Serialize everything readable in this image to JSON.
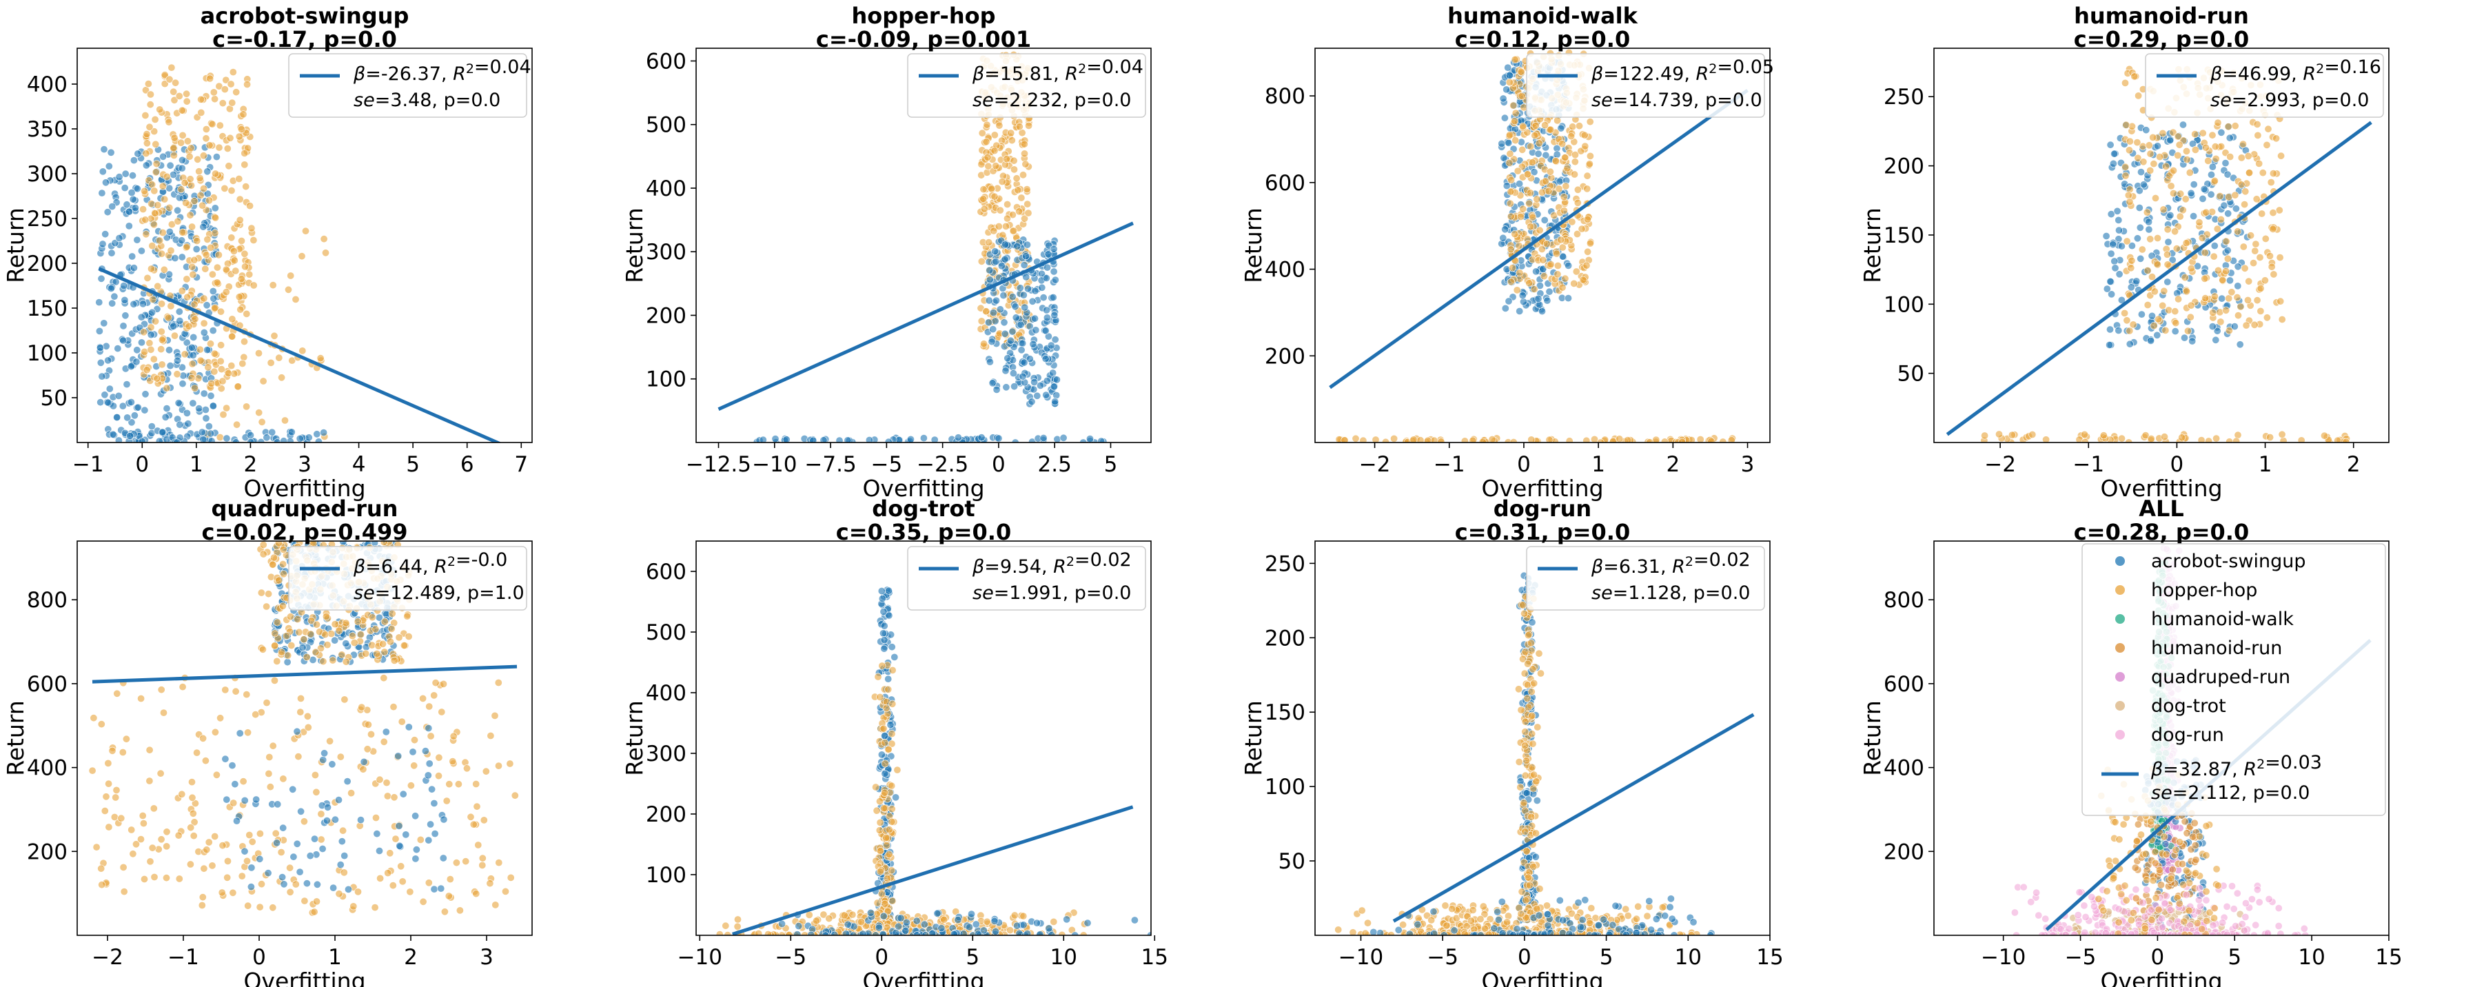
{
  "colors": {
    "blue": "#1f77b4",
    "orange": "#e8a33a",
    "green": "#20a985",
    "dark_orange": "#d98b2f",
    "pink": "#d47ecb",
    "tan": "#d9b27e",
    "light_pink": "#f2a9d9",
    "fit_line": "#1f6fb0"
  },
  "chart_data": [
    {
      "type": "scatter",
      "title": "acrobot-swingup",
      "subtitle": "c=-0.17, p=0.0",
      "xlabel": "Overfitting",
      "ylabel": "Return",
      "xlim": [
        -1.2,
        7.2
      ],
      "ylim": [
        0,
        440
      ],
      "xticks": [
        -1,
        0,
        1,
        2,
        3,
        4,
        5,
        6,
        7
      ],
      "yticks": [
        50,
        100,
        150,
        200,
        250,
        300,
        350,
        400
      ],
      "fit": {
        "slope": -26.37,
        "x": [
          -0.8,
          6.8
        ]
      },
      "legend": {
        "loc": "upper right",
        "line1": "β=-26.37, R²=0.04",
        "line2": "se=3.48, p=0.0"
      },
      "clusters": [
        {
          "color": "blue",
          "n": 380,
          "x": [
            -0.8,
            1.4
          ],
          "y": [
            0,
            330
          ],
          "shape": "uniform"
        },
        {
          "color": "orange",
          "n": 340,
          "x": [
            0.0,
            2.0
          ],
          "y": [
            60,
            420
          ],
          "shape": "uniform"
        },
        {
          "color": "orange",
          "n": 50,
          "x": [
            1.2,
            3.4
          ],
          "y": [
            5,
            260
          ],
          "shape": "uniform"
        },
        {
          "color": "blue",
          "n": 60,
          "x": [
            -0.8,
            3.5
          ],
          "y": [
            0,
            12
          ],
          "shape": "uniform"
        }
      ]
    },
    {
      "type": "scatter",
      "title": "hopper-hop",
      "subtitle": "c=-0.09, p=0.001",
      "xlabel": "Overfitting",
      "ylabel": "Return",
      "xlim": [
        -13.5,
        6.8
      ],
      "ylim": [
        0,
        620
      ],
      "xticks": [
        -12.5,
        -10.0,
        -7.5,
        -5.0,
        -2.5,
        0.0,
        2.5,
        5.0
      ],
      "yticks": [
        100,
        200,
        300,
        400,
        500,
        600
      ],
      "fit": {
        "slope": 15.81,
        "x": [
          -12.5,
          6.0
        ]
      },
      "legend": {
        "loc": "upper right",
        "line1": "β=15.81, R²=0.04",
        "line2": "se=2.232, p=0.0"
      },
      "clusters": [
        {
          "color": "orange",
          "n": 320,
          "x": [
            -0.8,
            1.4
          ],
          "y": [
            150,
            610
          ],
          "shape": "uniform"
        },
        {
          "color": "blue",
          "n": 240,
          "x": [
            -0.5,
            2.6
          ],
          "y": [
            60,
            320
          ],
          "shape": "uniform"
        },
        {
          "color": "blue",
          "n": 60,
          "x": [
            -11,
            5
          ],
          "y": [
            0,
            8
          ],
          "shape": "uniform"
        }
      ]
    },
    {
      "type": "scatter",
      "title": "humanoid-walk",
      "subtitle": "c=0.12, p=0.0",
      "xlabel": "Overfitting",
      "ylabel": "Return",
      "xlim": [
        -2.8,
        3.3
      ],
      "ylim": [
        0,
        910
      ],
      "xticks": [
        -2,
        -1,
        0,
        1,
        2,
        3
      ],
      "yticks": [
        200,
        400,
        600,
        800
      ],
      "fit": {
        "slope": 122.49,
        "x": [
          -2.6,
          3.0
        ]
      },
      "legend": {
        "loc": "upper right",
        "line1": "β=122.49, R²=0.05",
        "line2": "se=14.739, p=0.0"
      },
      "clusters": [
        {
          "color": "blue",
          "n": 300,
          "x": [
            -0.3,
            0.6
          ],
          "y": [
            300,
            880
          ],
          "shape": "uniform"
        },
        {
          "color": "orange",
          "n": 320,
          "x": [
            -0.2,
            0.9
          ],
          "y": [
            350,
            900
          ],
          "shape": "uniform"
        },
        {
          "color": "orange",
          "n": 80,
          "x": [
            -2.5,
            2.8
          ],
          "y": [
            0,
            10
          ],
          "shape": "uniform"
        }
      ]
    },
    {
      "type": "scatter",
      "title": "humanoid-run",
      "subtitle": "c=0.29, p=0.0",
      "xlabel": "Overfitting",
      "ylabel": "Return",
      "xlim": [
        -2.75,
        2.4
      ],
      "ylim": [
        0,
        285
      ],
      "xticks": [
        -2,
        -1,
        0,
        1,
        2
      ],
      "yticks": [
        50,
        100,
        150,
        200,
        250
      ],
      "fit": {
        "slope": 46.99,
        "x": [
          -2.6,
          2.2
        ]
      },
      "legend": {
        "loc": "upper right",
        "line1": "β=46.99, R²=0.16",
        "line2": "se=2.993, p=0.0"
      },
      "clusters": [
        {
          "color": "blue",
          "n": 240,
          "x": [
            -0.8,
            0.8
          ],
          "y": [
            70,
            230
          ],
          "shape": "uniform"
        },
        {
          "color": "orange",
          "n": 300,
          "x": [
            -0.6,
            1.2
          ],
          "y": [
            80,
            270
          ],
          "shape": "uniform"
        },
        {
          "color": "orange",
          "n": 60,
          "x": [
            -2.2,
            2.0
          ],
          "y": [
            0,
            6
          ],
          "shape": "uniform"
        }
      ]
    },
    {
      "type": "scatter",
      "title": "quadruped-run",
      "subtitle": "c=0.02, p=0.499",
      "xlabel": "Overfitting",
      "ylabel": "Return",
      "xlim": [
        -2.4,
        3.6
      ],
      "ylim": [
        0,
        940
      ],
      "xticks": [
        -2,
        -1,
        0,
        1,
        2,
        3
      ],
      "yticks": [
        200,
        400,
        600,
        800
      ],
      "fit": {
        "slope": 6.44,
        "x": [
          -2.2,
          3.4
        ]
      },
      "legend": {
        "loc": "upper right",
        "line1": "β=6.44, R²=-0.0",
        "line2": "se=12.489, p=1.0"
      },
      "clusters": [
        {
          "color": "blue",
          "n": 260,
          "x": [
            0.2,
            1.8
          ],
          "y": [
            650,
            940
          ],
          "shape": "uniform"
        },
        {
          "color": "orange",
          "n": 220,
          "x": [
            0.0,
            2.0
          ],
          "y": [
            650,
            940
          ],
          "shape": "uniform"
        },
        {
          "color": "orange",
          "n": 260,
          "x": [
            -2.2,
            3.4
          ],
          "y": [
            50,
            620
          ],
          "shape": "uniform"
        },
        {
          "color": "blue",
          "n": 80,
          "x": [
            -0.5,
            2.5
          ],
          "y": [
            100,
            500
          ],
          "shape": "uniform"
        }
      ]
    },
    {
      "type": "scatter",
      "title": "dog-trot",
      "subtitle": "c=0.35, p=0.0",
      "xlabel": "Overfitting",
      "ylabel": "Return",
      "xlim": [
        -10.2,
        14.8
      ],
      "ylim": [
        0,
        650
      ],
      "xticks": [
        -10,
        -5,
        0,
        5,
        10,
        15
      ],
      "yticks": [
        100,
        200,
        300,
        400,
        500,
        600
      ],
      "fit": {
        "slope": 9.54,
        "x": [
          -8.2,
          13.8
        ]
      },
      "legend": {
        "loc": "upper right",
        "line1": "β=9.54, R²=0.02",
        "line2": "se=1.991, p=0.0"
      },
      "clusters": [
        {
          "color": "blue",
          "n": 200,
          "x": [
            -0.5,
            0.9
          ],
          "y": [
            20,
            570
          ],
          "shape": "spike"
        },
        {
          "color": "orange",
          "n": 120,
          "x": [
            -0.6,
            1.0
          ],
          "y": [
            20,
            450
          ],
          "shape": "spike"
        },
        {
          "color": "orange",
          "n": 400,
          "x": [
            -9.5,
            12
          ],
          "y": [
            0,
            40
          ],
          "shape": "floor"
        },
        {
          "color": "blue",
          "n": 120,
          "x": [
            -8,
            14
          ],
          "y": [
            0,
            40
          ],
          "shape": "floor"
        }
      ]
    },
    {
      "type": "scatter",
      "title": "dog-run",
      "subtitle": "c=0.31, p=0.0",
      "xlabel": "Overfitting",
      "ylabel": "Return",
      "xlim": [
        -12.8,
        15
      ],
      "ylim": [
        0,
        265
      ],
      "xticks": [
        -10,
        -5,
        0,
        5,
        10,
        15
      ],
      "yticks": [
        50,
        100,
        150,
        200,
        250
      ],
      "fit": {
        "slope": 6.31,
        "x": [
          -8.0,
          14.0
        ]
      },
      "legend": {
        "loc": "upper right",
        "line1": "β=6.31, R²=0.02",
        "line2": "se=1.128, p=0.0"
      },
      "clusters": [
        {
          "color": "blue",
          "n": 200,
          "x": [
            -0.6,
            1.0
          ],
          "y": [
            10,
            245
          ],
          "shape": "spike"
        },
        {
          "color": "orange",
          "n": 140,
          "x": [
            -0.7,
            1.2
          ],
          "y": [
            10,
            230
          ],
          "shape": "spike"
        },
        {
          "color": "orange",
          "n": 400,
          "x": [
            -12,
            12
          ],
          "y": [
            0,
            20
          ],
          "shape": "floor"
        },
        {
          "color": "blue",
          "n": 120,
          "x": [
            -10,
            14
          ],
          "y": [
            0,
            25
          ],
          "shape": "floor"
        }
      ]
    },
    {
      "type": "scatter",
      "title": "ALL",
      "subtitle": "c=0.28, p=0.0",
      "xlabel": "Overfitting",
      "ylabel": "Return",
      "xlim": [
        -14.5,
        15
      ],
      "ylim": [
        0,
        940
      ],
      "xticks": [
        -10,
        -5,
        0,
        5,
        10,
        15
      ],
      "yticks": [
        200,
        400,
        600,
        800
      ],
      "fit": {
        "slope": 32.87,
        "x": [
          -7.2,
          13.8
        ]
      },
      "legend": {
        "loc": "upper right",
        "series": [
          {
            "name": "acrobot-swingup",
            "color": "blue"
          },
          {
            "name": "hopper-hop",
            "color": "orange"
          },
          {
            "name": "humanoid-walk",
            "color": "green"
          },
          {
            "name": "humanoid-run",
            "color": "dark_orange"
          },
          {
            "name": "quadruped-run",
            "color": "pink"
          },
          {
            "name": "dog-trot",
            "color": "tan"
          },
          {
            "name": "dog-run",
            "color": "light_pink"
          }
        ],
        "line1": "β=32.87, R²=0.03",
        "line2": "se=2.112, p=0.0"
      },
      "clusters": [
        {
          "color": "pink",
          "n": 260,
          "x": [
            -0.5,
            1.8
          ],
          "y": [
            150,
            930
          ],
          "shape": "spike"
        },
        {
          "color": "green",
          "n": 200,
          "x": [
            -0.6,
            1.0
          ],
          "y": [
            200,
            900
          ],
          "shape": "spike"
        },
        {
          "color": "blue",
          "n": 120,
          "x": [
            -0.8,
            3.0
          ],
          "y": [
            0,
            420
          ],
          "shape": "uniform"
        },
        {
          "color": "dark_orange",
          "n": 100,
          "x": [
            -1.5,
            2.5
          ],
          "y": [
            0,
            300
          ],
          "shape": "uniform"
        },
        {
          "color": "tan",
          "n": 150,
          "x": [
            -8,
            8
          ],
          "y": [
            0,
            60
          ],
          "shape": "floor"
        },
        {
          "color": "light_pink",
          "n": 250,
          "x": [
            -12,
            12
          ],
          "y": [
            0,
            120
          ],
          "shape": "floor"
        },
        {
          "color": "orange",
          "n": 100,
          "x": [
            -4,
            4
          ],
          "y": [
            0,
            400
          ],
          "shape": "uniform"
        }
      ]
    }
  ]
}
